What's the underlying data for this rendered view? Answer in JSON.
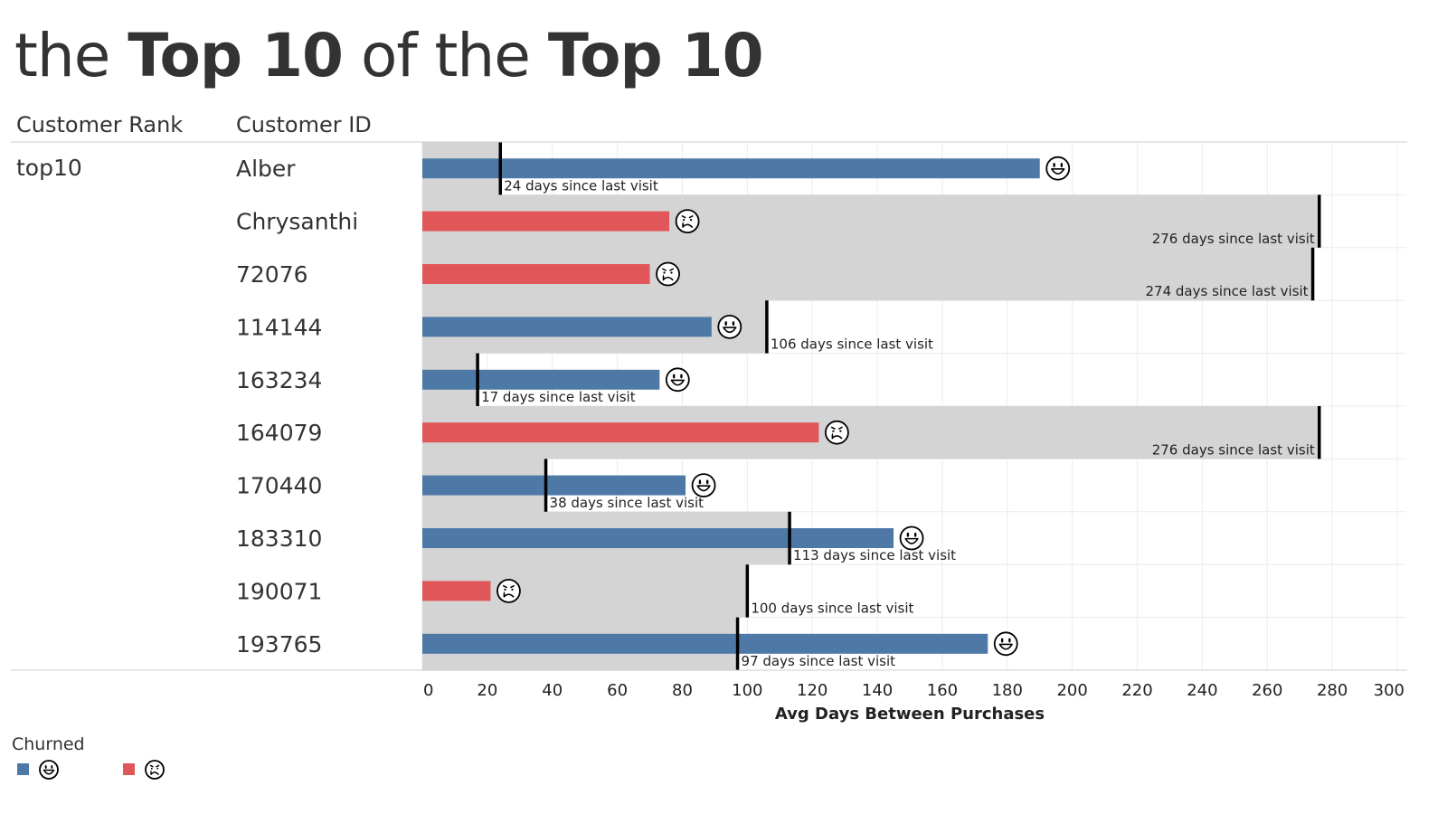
{
  "title": {
    "part1": "the ",
    "part2": "Top 10",
    "part3": " of the ",
    "part4": "Top 10"
  },
  "columns": {
    "rank": "Customer Rank",
    "id": "Customer ID"
  },
  "rank_value": "top10",
  "legend": {
    "title": "Churned",
    "items": [
      {
        "icon": "happy-face-icon",
        "color": "#4e79a7"
      },
      {
        "icon": "sad-face-icon",
        "color": "#e15759"
      }
    ]
  },
  "chart_data": {
    "type": "bar",
    "xlabel": "Avg Days Between Purchases",
    "xlim": [
      0,
      300
    ],
    "xticks": [
      0,
      20,
      40,
      60,
      80,
      100,
      120,
      140,
      160,
      180,
      200,
      220,
      240,
      260,
      280,
      300
    ],
    "grid": true,
    "legend_position": "bottom-left",
    "colors": {
      "not_churned": "#4e79a7",
      "churned": "#e15759",
      "background": "#d4d4d4",
      "marker": "#000000"
    },
    "rows": [
      {
        "id": "Alber",
        "avg_days": 190,
        "days_since": 24,
        "churned": false,
        "label": "24 days since last visit"
      },
      {
        "id": "Chrysanthi",
        "avg_days": 76,
        "days_since": 276,
        "churned": true,
        "label": "276 days since last visit"
      },
      {
        "id": "72076",
        "avg_days": 70,
        "days_since": 274,
        "churned": true,
        "label": "274 days since last visit"
      },
      {
        "id": "114144",
        "avg_days": 89,
        "days_since": 106,
        "churned": false,
        "label": "106 days since last visit"
      },
      {
        "id": "163234",
        "avg_days": 73,
        "days_since": 17,
        "churned": false,
        "label": "17 days since last visit"
      },
      {
        "id": "164079",
        "avg_days": 122,
        "days_since": 276,
        "churned": true,
        "label": "276 days since last visit"
      },
      {
        "id": "170440",
        "avg_days": 81,
        "days_since": 38,
        "churned": false,
        "label": "38 days since last visit"
      },
      {
        "id": "183310",
        "avg_days": 145,
        "days_since": 113,
        "churned": false,
        "label": "113 days since last visit"
      },
      {
        "id": "190071",
        "avg_days": 21,
        "days_since": 100,
        "churned": true,
        "label": "100 days since last visit"
      },
      {
        "id": "193765",
        "avg_days": 174,
        "days_since": 97,
        "churned": false,
        "label": "97 days since last visit"
      }
    ]
  }
}
